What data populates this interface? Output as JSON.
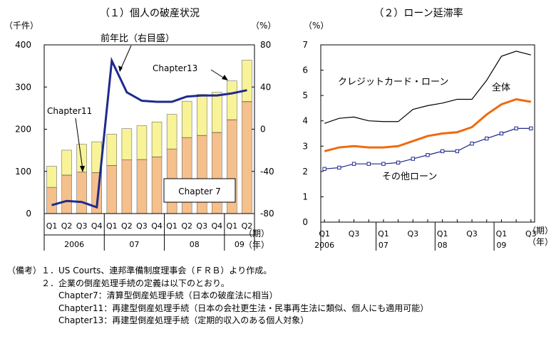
{
  "chart_data": [
    {
      "type": "bar",
      "title": "（１）個人の破産状況",
      "ylabel_left": "（千件）",
      "ylabel_right": "（%）",
      "xlabel": "（期）",
      "xlabel2": "（年）",
      "ylim_left": [
        0,
        400
      ],
      "ylim_right": [
        -80,
        80
      ],
      "yticks_left": [
        "0",
        "100",
        "200",
        "300",
        "400"
      ],
      "yticks_right": [
        "-80",
        "-40",
        "0",
        "40",
        "80"
      ],
      "categories": [
        "Q1",
        "Q2",
        "Q3",
        "Q4",
        "Q1",
        "Q2",
        "Q3",
        "Q4",
        "Q1",
        "Q2",
        "Q3",
        "Q4",
        "Q1",
        "Q2"
      ],
      "years": [
        {
          "label": "2006",
          "start": 0,
          "end": 3
        },
        {
          "label": "07",
          "start": 4,
          "end": 7
        },
        {
          "label": "08",
          "start": 8,
          "end": 11
        },
        {
          "label": "09",
          "start": 12,
          "end": 13
        }
      ],
      "series": [
        {
          "name": "Chapter 7",
          "values": [
            62,
            91,
            98,
            97,
            114,
            127,
            128,
            134,
            153,
            180,
            185,
            192,
            222,
            265
          ],
          "color": "#f5c08c"
        },
        {
          "name": "Chapter 11",
          "values": [
            0.3,
            0.3,
            0.3,
            0.3,
            0.3,
            0.3,
            0.3,
            0.3,
            0.3,
            0.4,
            0.5,
            0.5,
            0.6,
            0.7
          ],
          "color": "#8b4513"
        },
        {
          "name": "Chapter 13",
          "values": [
            50,
            59,
            66,
            73,
            74,
            74,
            80,
            83,
            82,
            86,
            97,
            95,
            92,
            98
          ],
          "color": "#f8f397"
        },
        {
          "name": "前年比（右目盛）",
          "values": [
            -72,
            -68,
            -69,
            -74,
            65,
            35,
            27,
            26,
            26,
            31,
            32,
            32,
            34,
            37
          ],
          "color": "#1f2a8c"
        }
      ],
      "annotations": [
        "前年比（右目盛）",
        "Chapter13",
        "Chapter11",
        "Chapter 7"
      ]
    },
    {
      "type": "line",
      "title": "（２）ローン延滞率",
      "ylabel": "（%）",
      "xlabel": "（期）",
      "xlabel2": "（年）",
      "ylim": [
        0,
        7
      ],
      "yticks": [
        "0",
        "1",
        "2",
        "3",
        "4",
        "5",
        "6",
        "7"
      ],
      "x_tick_labels": [
        "Q1",
        "Q3",
        "Q1",
        "Q3",
        "Q1",
        "Q3",
        "Q1",
        "Q3"
      ],
      "year_labels": [
        "2006",
        "07",
        "08",
        "09"
      ],
      "series": [
        {
          "name": "クレジットカード・ローン",
          "values": [
            3.9,
            4.1,
            4.15,
            4.0,
            3.97,
            3.97,
            4.45,
            4.6,
            4.7,
            4.85,
            4.85,
            5.6,
            6.55,
            6.75,
            6.6
          ],
          "color": "#000000"
        },
        {
          "name": "全体",
          "values": [
            2.8,
            2.95,
            3.0,
            2.95,
            2.95,
            3.0,
            3.2,
            3.4,
            3.5,
            3.55,
            3.75,
            4.25,
            4.65,
            4.85,
            4.75
          ],
          "color": "#f06a0f"
        },
        {
          "name": "その他ローン",
          "values": [
            2.1,
            2.15,
            2.3,
            2.3,
            2.3,
            2.35,
            2.5,
            2.65,
            2.8,
            2.8,
            3.1,
            3.3,
            3.5,
            3.7,
            3.7
          ],
          "color": "#1f2a8c"
        }
      ]
    }
  ],
  "notes": {
    "lines": [
      "（備考）１．US Courts、連邦準備制度理事会（ＦＲＢ）より作成。",
      "　　　　２．企業の倒産処理手続の定義は以下のとおり。",
      "　　　　　　Chapter7：清算型倒産処理手続（日本の破産法に相当）",
      "　　　　　　Chapter11：再建型倒産処理手続（日本の会社更生法・民事再生法に類似、個人にも適用可能）",
      "　　　　　　Chapter13：再建型倒産処理手続（定期的収入のある個人対象）"
    ]
  }
}
